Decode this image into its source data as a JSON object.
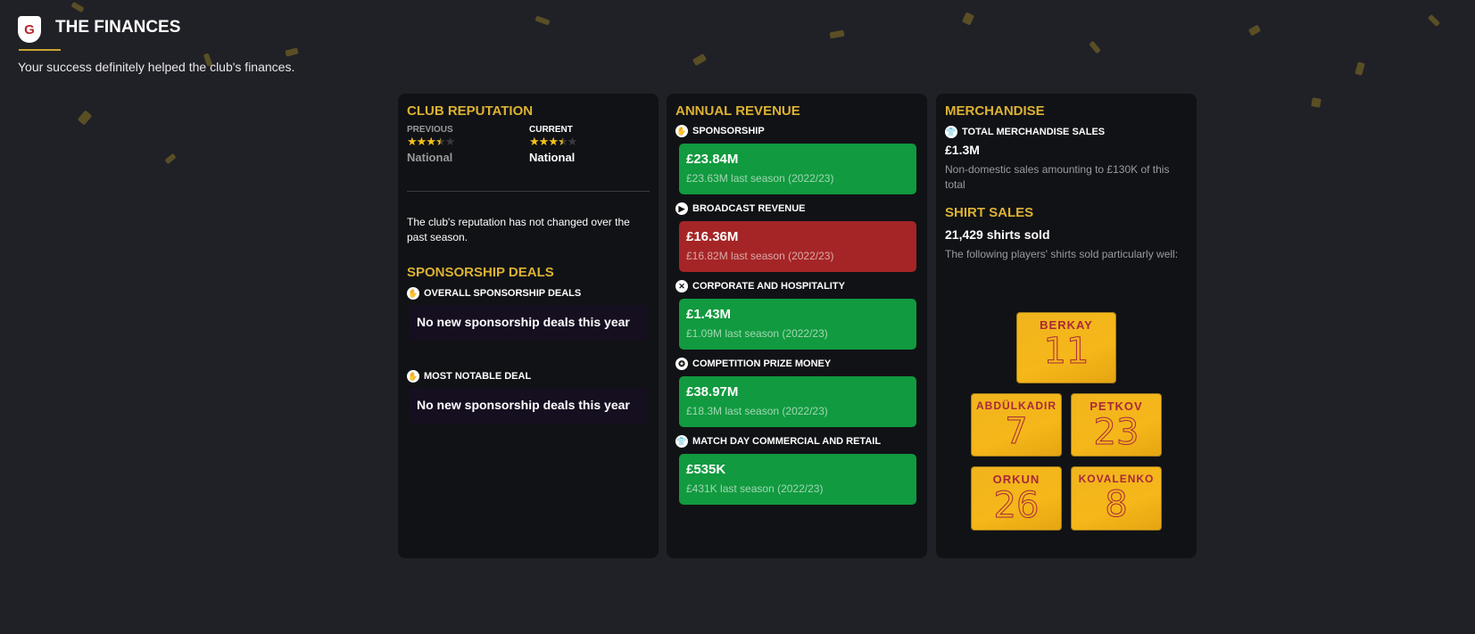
{
  "header": {
    "crest": "G",
    "title": "THE FINANCES",
    "subtitle": "Your success definitely helped the club's finances."
  },
  "reputation": {
    "title": "CLUB REPUTATION",
    "previous_label": "PREVIOUS",
    "previous_stars": 3.5,
    "previous_value": "National",
    "current_label": "CURRENT",
    "current_stars": 3.5,
    "current_value": "National",
    "note": "The club's reputation has not changed over the past season."
  },
  "sponsorship": {
    "title": "SPONSORSHIP DEALS",
    "overall_label": "OVERALL SPONSORSHIP DEALS",
    "overall_value": "No new sponsorship deals this year",
    "notable_label": "MOST NOTABLE DEAL",
    "notable_value": "No new sponsorship deals this year"
  },
  "revenue": {
    "title": "ANNUAL REVENUE",
    "items": [
      {
        "label": "SPONSORSHIP",
        "icon": "handshake-icon",
        "value": "£23.84M",
        "previous": "£23.63M last season (2022/23)",
        "color": "#119a3f"
      },
      {
        "label": "BROADCAST REVENUE",
        "icon": "camera-icon",
        "value": "£16.36M",
        "previous": "£16.82M last season (2022/23)",
        "color": "#a52526"
      },
      {
        "label": "CORPORATE AND HOSPITALITY",
        "icon": "cutlery-icon",
        "value": "£1.43M",
        "previous": "£1.09M last season (2022/23)",
        "color": "#119a3f"
      },
      {
        "label": "COMPETITION PRIZE MONEY",
        "icon": "medal-icon",
        "value": "£38.97M",
        "previous": "£18.3M last season (2022/23)",
        "color": "#119a3f"
      },
      {
        "label": "MATCH DAY COMMERCIAL AND RETAIL",
        "icon": "shirt-icon",
        "value": "£535K",
        "previous": "£431K last season (2022/23)",
        "color": "#119a3f"
      }
    ]
  },
  "merchandise": {
    "title": "MERCHANDISE",
    "total_label": "TOTAL MERCHANDISE SALES",
    "total_value": "£1.3M",
    "total_note": "Non-domestic sales amounting to £130K of this total",
    "shirt_title": "SHIRT SALES",
    "shirts_sold": "21,429 shirts sold",
    "shirts_note": "The following players' shirts sold particularly well:",
    "shirts": [
      {
        "name": "BERKAY",
        "number": "11"
      },
      {
        "name": "ABDÜLKADIR",
        "number": "7"
      },
      {
        "name": "PETKOV",
        "number": "23"
      },
      {
        "name": "ORKUN",
        "number": "26"
      },
      {
        "name": "KOVALENKO",
        "number": "8"
      }
    ]
  }
}
